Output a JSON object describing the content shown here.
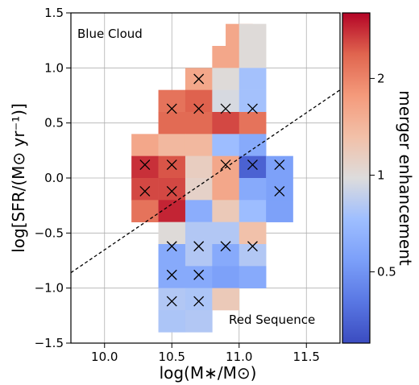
{
  "chart_data": {
    "type": "heatmap",
    "xlabel": "log(M∗/M⊙)",
    "ylabel": "log[SFR/(M⊙ yr⁻¹)]",
    "xlim": [
      9.75,
      11.75
    ],
    "ylim": [
      -1.5,
      1.5
    ],
    "xticks": [
      "10.0",
      "10.5",
      "11.0",
      "11.5"
    ],
    "yticks": [
      "−1.5",
      "−1.0",
      "−0.5",
      "0.0",
      "0.5",
      "1.0",
      "1.5"
    ],
    "grid": true,
    "colorbar": {
      "label": "merger enhancement",
      "scale": "log",
      "range": [
        0.3,
        3.2
      ],
      "colormap": "coolwarm",
      "ticks": [
        "0.5",
        "1",
        "2"
      ]
    },
    "bin_size": {
      "x": 0.2,
      "y": 0.2
    },
    "cells": [
      {
        "x": 11.0,
        "y": 1.4,
        "value": 1.6
      },
      {
        "x": 11.1,
        "y": 1.4,
        "value": 1.0
      },
      {
        "x": 10.9,
        "y": 1.2,
        "value": 1.6
      },
      {
        "x": 11.1,
        "y": 1.2,
        "value": 1.0
      },
      {
        "x": 10.7,
        "y": 1.0,
        "value": 1.6
      },
      {
        "x": 10.9,
        "y": 1.0,
        "value": 1.0
      },
      {
        "x": 11.1,
        "y": 1.0,
        "value": 0.75
      },
      {
        "x": 10.5,
        "y": 0.8,
        "value": 2.2
      },
      {
        "x": 10.7,
        "y": 0.8,
        "value": 2.4
      },
      {
        "x": 10.9,
        "y": 0.8,
        "value": 0.95
      },
      {
        "x": 11.1,
        "y": 0.8,
        "value": 0.75
      },
      {
        "x": 10.5,
        "y": 0.6,
        "value": 2.3
      },
      {
        "x": 10.7,
        "y": 0.6,
        "value": 2.3
      },
      {
        "x": 10.9,
        "y": 0.6,
        "value": 2.6
      },
      {
        "x": 11.1,
        "y": 0.6,
        "value": 2.2
      },
      {
        "x": 10.3,
        "y": 0.4,
        "value": 1.6
      },
      {
        "x": 10.5,
        "y": 0.4,
        "value": 1.4
      },
      {
        "x": 10.7,
        "y": 0.4,
        "value": 1.4
      },
      {
        "x": 10.9,
        "y": 0.4,
        "value": 0.72
      },
      {
        "x": 11.1,
        "y": 0.4,
        "value": 0.6
      },
      {
        "x": 10.3,
        "y": 0.2,
        "value": 2.8
      },
      {
        "x": 10.5,
        "y": 0.2,
        "value": 2.5
      },
      {
        "x": 10.7,
        "y": 0.2,
        "value": 1.15
      },
      {
        "x": 10.9,
        "y": 0.2,
        "value": 1.6
      },
      {
        "x": 11.1,
        "y": 0.2,
        "value": 0.35
      },
      {
        "x": 11.3,
        "y": 0.2,
        "value": 0.55
      },
      {
        "x": 10.3,
        "y": 0.0,
        "value": 2.6
      },
      {
        "x": 10.5,
        "y": 0.0,
        "value": 2.6
      },
      {
        "x": 10.7,
        "y": 0.0,
        "value": 1.1
      },
      {
        "x": 10.9,
        "y": 0.0,
        "value": 1.6
      },
      {
        "x": 11.1,
        "y": 0.0,
        "value": 0.6
      },
      {
        "x": 11.3,
        "y": 0.0,
        "value": 0.55
      },
      {
        "x": 10.3,
        "y": -0.2,
        "value": 2.2
      },
      {
        "x": 10.5,
        "y": -0.2,
        "value": 2.9
      },
      {
        "x": 10.7,
        "y": -0.2,
        "value": 0.62
      },
      {
        "x": 10.9,
        "y": -0.2,
        "value": 1.2
      },
      {
        "x": 11.1,
        "y": -0.2,
        "value": 0.72
      },
      {
        "x": 11.3,
        "y": -0.2,
        "value": 0.55
      },
      {
        "x": 10.5,
        "y": -0.4,
        "value": 1.0
      },
      {
        "x": 10.7,
        "y": -0.4,
        "value": 0.8
      },
      {
        "x": 10.9,
        "y": -0.4,
        "value": 0.8
      },
      {
        "x": 11.1,
        "y": -0.4,
        "value": 1.3
      },
      {
        "x": 10.5,
        "y": -0.6,
        "value": 0.6
      },
      {
        "x": 10.7,
        "y": -0.6,
        "value": 0.8
      },
      {
        "x": 10.9,
        "y": -0.6,
        "value": 0.6
      },
      {
        "x": 11.1,
        "y": -0.6,
        "value": 0.8
      },
      {
        "x": 10.5,
        "y": -0.8,
        "value": 0.6
      },
      {
        "x": 10.7,
        "y": -0.8,
        "value": 0.6
      },
      {
        "x": 10.9,
        "y": -0.8,
        "value": 0.55
      },
      {
        "x": 11.1,
        "y": -0.8,
        "value": 0.6
      },
      {
        "x": 10.5,
        "y": -1.0,
        "value": 0.8
      },
      {
        "x": 10.7,
        "y": -1.0,
        "value": 0.78
      },
      {
        "x": 10.9,
        "y": -1.0,
        "value": 1.2
      },
      {
        "x": 10.5,
        "y": -1.2,
        "value": 0.78
      },
      {
        "x": 10.7,
        "y": -1.2,
        "value": 0.8
      }
    ],
    "crosses": [
      {
        "x": 10.7,
        "y": 0.9
      },
      {
        "x": 10.5,
        "y": 0.63
      },
      {
        "x": 10.7,
        "y": 0.63
      },
      {
        "x": 10.9,
        "y": 0.63
      },
      {
        "x": 11.1,
        "y": 0.63
      },
      {
        "x": 10.3,
        "y": 0.12
      },
      {
        "x": 10.5,
        "y": 0.12
      },
      {
        "x": 10.9,
        "y": 0.12
      },
      {
        "x": 11.1,
        "y": 0.12
      },
      {
        "x": 11.3,
        "y": 0.12
      },
      {
        "x": 10.3,
        "y": -0.12
      },
      {
        "x": 10.5,
        "y": -0.12
      },
      {
        "x": 11.3,
        "y": -0.12
      },
      {
        "x": 10.5,
        "y": -0.62
      },
      {
        "x": 10.7,
        "y": -0.62
      },
      {
        "x": 10.9,
        "y": -0.62
      },
      {
        "x": 11.1,
        "y": -0.62
      },
      {
        "x": 10.5,
        "y": -0.88
      },
      {
        "x": 10.7,
        "y": -0.88
      },
      {
        "x": 10.5,
        "y": -1.12
      },
      {
        "x": 10.7,
        "y": -1.12
      }
    ],
    "dividing_line": {
      "x": [
        9.75,
        11.75
      ],
      "y": [
        -0.86,
        0.8
      ]
    },
    "annotations": [
      "Blue Cloud",
      "Red Sequence"
    ]
  }
}
